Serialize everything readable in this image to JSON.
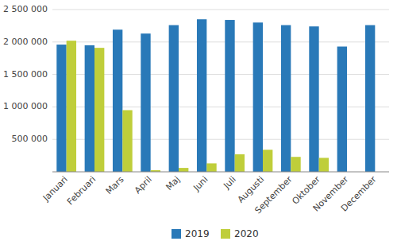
{
  "chart_data": {
    "type": "bar",
    "categories": [
      "Januari",
      "Februari",
      "Mars",
      "April",
      "Maj",
      "Juni",
      "Juli",
      "Augusti",
      "September",
      "Oktober",
      "November",
      "December"
    ],
    "series": [
      {
        "name": "2019",
        "color": "#2979B8",
        "values": [
          1960000,
          1950000,
          2190000,
          2130000,
          2260000,
          2350000,
          2340000,
          2300000,
          2260000,
          2240000,
          1930000,
          2260000
        ]
      },
      {
        "name": "2020",
        "color": "#BFCE3A",
        "values": [
          2020000,
          1910000,
          950000,
          25000,
          60000,
          130000,
          270000,
          340000,
          230000,
          215000,
          0,
          0
        ]
      }
    ],
    "ylim": [
      0,
      2500000
    ],
    "yticks": [
      {
        "value": 500000,
        "label": "500 000"
      },
      {
        "value": 1000000,
        "label": "1 000 000"
      },
      {
        "value": 1500000,
        "label": "1 500 000"
      },
      {
        "value": 2000000,
        "label": "2 000 000"
      },
      {
        "value": 2500000,
        "label": "2 500 000"
      }
    ],
    "grid": true,
    "legend": "bottom"
  }
}
